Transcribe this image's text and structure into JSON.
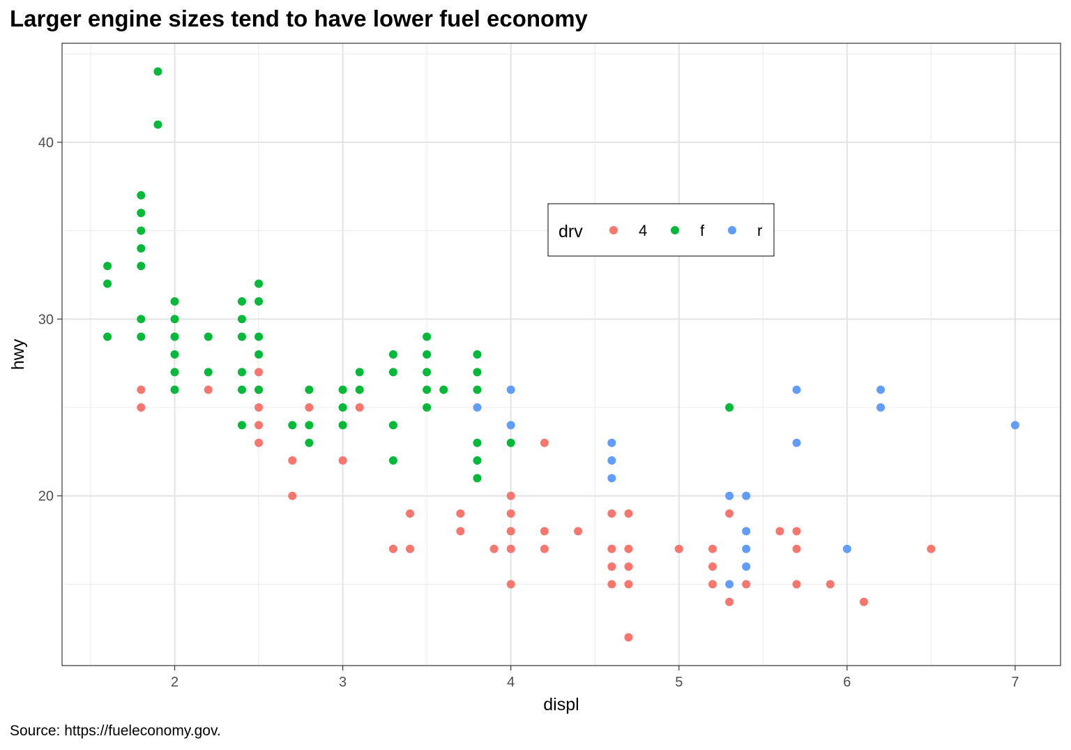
{
  "chart_data": {
    "type": "scatter",
    "title": "Larger engine sizes tend to have lower fuel economy",
    "caption": "Source: https://fueleconomy.gov.",
    "xlabel": "displ",
    "ylabel": "hwy",
    "xlim": [
      1.33,
      7.27
    ],
    "ylim": [
      10.4,
      45.6
    ],
    "x_ticks": [
      2,
      3,
      4,
      5,
      6,
      7
    ],
    "y_ticks": [
      20,
      30,
      40
    ],
    "grid": true,
    "legend": {
      "title": "drv",
      "placement": "inside-top-right",
      "entries": [
        "4",
        "f",
        "r"
      ]
    },
    "colors": {
      "4": "#F8766D",
      "f": "#00BA38",
      "r": "#619CFF"
    },
    "series": [
      {
        "name": "4",
        "points": [
          [
            1.8,
            26
          ],
          [
            1.8,
            25
          ],
          [
            2.2,
            26
          ],
          [
            2.5,
            27
          ],
          [
            2.5,
            26
          ],
          [
            2.5,
            25
          ],
          [
            2.5,
            24
          ],
          [
            2.5,
            23
          ],
          [
            2.7,
            22
          ],
          [
            2.7,
            20
          ],
          [
            2.8,
            25
          ],
          [
            3.0,
            22
          ],
          [
            3.1,
            25
          ],
          [
            3.3,
            17
          ],
          [
            3.4,
            19
          ],
          [
            3.4,
            17
          ],
          [
            3.7,
            19
          ],
          [
            3.7,
            18
          ],
          [
            3.9,
            17
          ],
          [
            4.0,
            20
          ],
          [
            4.0,
            19
          ],
          [
            4.0,
            18
          ],
          [
            4.0,
            17
          ],
          [
            4.0,
            15
          ],
          [
            4.2,
            23
          ],
          [
            4.2,
            18
          ],
          [
            4.2,
            17
          ],
          [
            4.4,
            18
          ],
          [
            4.6,
            19
          ],
          [
            4.6,
            17
          ],
          [
            4.6,
            16
          ],
          [
            4.6,
            15
          ],
          [
            4.7,
            19
          ],
          [
            4.7,
            17
          ],
          [
            4.7,
            16
          ],
          [
            4.7,
            15
          ],
          [
            4.7,
            12
          ],
          [
            5.0,
            17
          ],
          [
            5.2,
            17
          ],
          [
            5.2,
            16
          ],
          [
            5.2,
            15
          ],
          [
            5.3,
            19
          ],
          [
            5.3,
            14
          ],
          [
            5.4,
            15
          ],
          [
            5.6,
            18
          ],
          [
            5.7,
            18
          ],
          [
            5.7,
            17
          ],
          [
            5.7,
            15
          ],
          [
            5.9,
            15
          ],
          [
            6.1,
            14
          ],
          [
            6.5,
            17
          ]
        ]
      },
      {
        "name": "f",
        "points": [
          [
            1.6,
            33
          ],
          [
            1.6,
            32
          ],
          [
            1.6,
            29
          ],
          [
            1.8,
            37
          ],
          [
            1.8,
            36
          ],
          [
            1.8,
            35
          ],
          [
            1.8,
            34
          ],
          [
            1.8,
            33
          ],
          [
            1.8,
            30
          ],
          [
            1.8,
            29
          ],
          [
            1.9,
            44
          ],
          [
            1.9,
            41
          ],
          [
            2.0,
            31
          ],
          [
            2.0,
            30
          ],
          [
            2.0,
            29
          ],
          [
            2.0,
            28
          ],
          [
            2.0,
            27
          ],
          [
            2.0,
            26
          ],
          [
            2.2,
            29
          ],
          [
            2.2,
            27
          ],
          [
            2.4,
            31
          ],
          [
            2.4,
            30
          ],
          [
            2.4,
            29
          ],
          [
            2.4,
            27
          ],
          [
            2.4,
            26
          ],
          [
            2.4,
            24
          ],
          [
            2.5,
            32
          ],
          [
            2.5,
            31
          ],
          [
            2.5,
            29
          ],
          [
            2.5,
            28
          ],
          [
            2.5,
            26
          ],
          [
            2.7,
            24
          ],
          [
            2.8,
            26
          ],
          [
            2.8,
            24
          ],
          [
            2.8,
            23
          ],
          [
            3.0,
            26
          ],
          [
            3.0,
            25
          ],
          [
            3.0,
            24
          ],
          [
            3.1,
            27
          ],
          [
            3.1,
            26
          ],
          [
            3.3,
            28
          ],
          [
            3.3,
            27
          ],
          [
            3.3,
            24
          ],
          [
            3.3,
            22
          ],
          [
            3.5,
            29
          ],
          [
            3.5,
            28
          ],
          [
            3.5,
            27
          ],
          [
            3.5,
            26
          ],
          [
            3.5,
            25
          ],
          [
            3.6,
            26
          ],
          [
            3.8,
            28
          ],
          [
            3.8,
            27
          ],
          [
            3.8,
            26
          ],
          [
            3.8,
            23
          ],
          [
            3.8,
            22
          ],
          [
            3.8,
            21
          ],
          [
            4.0,
            23
          ],
          [
            5.3,
            25
          ]
        ]
      },
      {
        "name": "r",
        "points": [
          [
            3.8,
            25
          ],
          [
            4.0,
            26
          ],
          [
            4.0,
            24
          ],
          [
            4.6,
            23
          ],
          [
            4.6,
            22
          ],
          [
            4.6,
            21
          ],
          [
            5.3,
            20
          ],
          [
            5.3,
            15
          ],
          [
            5.4,
            20
          ],
          [
            5.4,
            18
          ],
          [
            5.4,
            17
          ],
          [
            5.4,
            16
          ],
          [
            5.7,
            26
          ],
          [
            5.7,
            23
          ],
          [
            6.0,
            17
          ],
          [
            6.2,
            26
          ],
          [
            6.2,
            25
          ],
          [
            7.0,
            24
          ]
        ]
      }
    ]
  }
}
